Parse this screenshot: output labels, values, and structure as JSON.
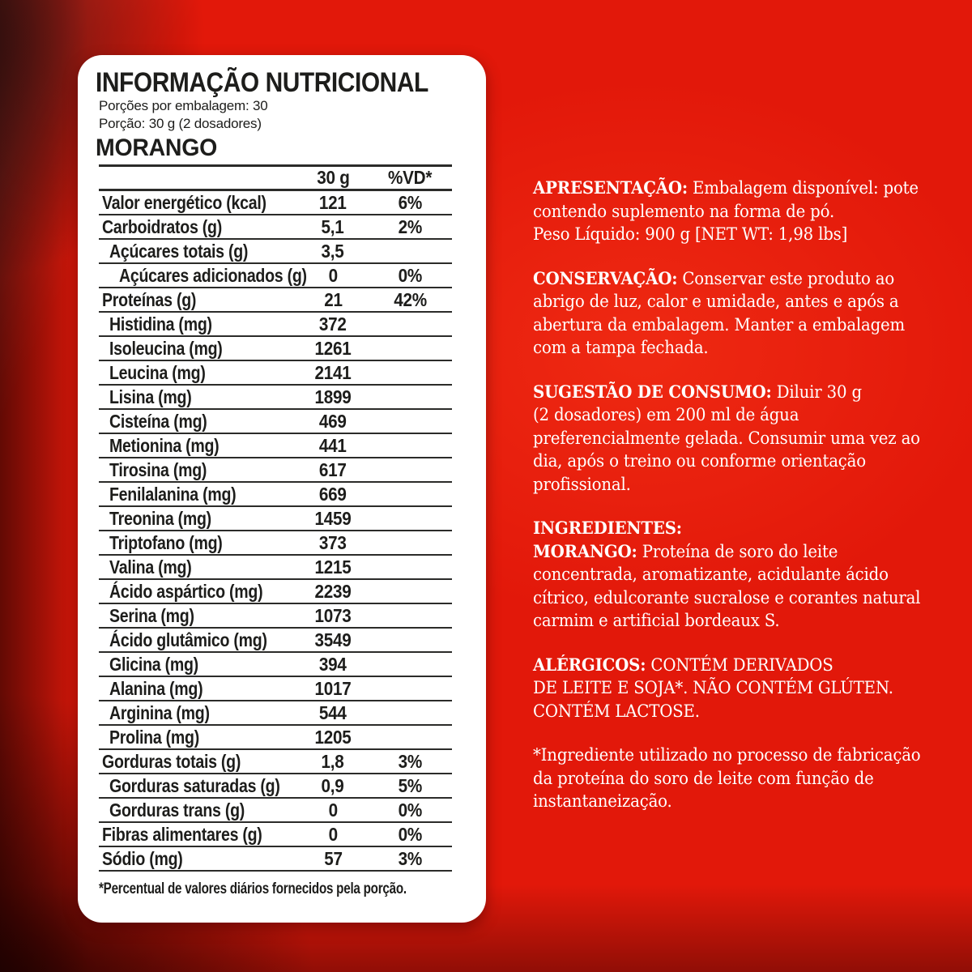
{
  "card": {
    "title": "INFORMAÇÃO NUTRICIONAL",
    "servings_per_package": "Porções por embalagem: 30",
    "serving_size": "Porção: 30 g (2 dosadores)",
    "flavor": "MORANGO",
    "table": {
      "columns": [
        "",
        "30 g",
        "%VD*"
      ],
      "rows": [
        {
          "name": "Valor energético (kcal)",
          "value": "121",
          "vd": "6%",
          "indent": 0
        },
        {
          "name": "Carboidratos (g)",
          "value": "5,1",
          "vd": "2%",
          "indent": 0
        },
        {
          "name": "Açúcares totais (g)",
          "value": "3,5",
          "vd": "",
          "indent": 1
        },
        {
          "name": "Açúcares adicionados (g)",
          "value": "0",
          "vd": "0%",
          "indent": 2
        },
        {
          "name": "Proteínas (g)",
          "value": "21",
          "vd": "42%",
          "indent": 0
        },
        {
          "name": "Histidina (mg)",
          "value": "372",
          "vd": "",
          "indent": 1
        },
        {
          "name": "Isoleucina (mg)",
          "value": "1261",
          "vd": "",
          "indent": 1
        },
        {
          "name": "Leucina (mg)",
          "value": "2141",
          "vd": "",
          "indent": 1
        },
        {
          "name": "Lisina (mg)",
          "value": "1899",
          "vd": "",
          "indent": 1
        },
        {
          "name": "Cisteína (mg)",
          "value": "469",
          "vd": "",
          "indent": 1
        },
        {
          "name": "Metionina (mg)",
          "value": "441",
          "vd": "",
          "indent": 1
        },
        {
          "name": "Tirosina (mg)",
          "value": "617",
          "vd": "",
          "indent": 1
        },
        {
          "name": "Fenilalanina (mg)",
          "value": "669",
          "vd": "",
          "indent": 1
        },
        {
          "name": "Treonina (mg)",
          "value": "1459",
          "vd": "",
          "indent": 1
        },
        {
          "name": "Triptofano (mg)",
          "value": "373",
          "vd": "",
          "indent": 1
        },
        {
          "name": "Valina (mg)",
          "value": "1215",
          "vd": "",
          "indent": 1
        },
        {
          "name": "Ácido aspártico (mg)",
          "value": "2239",
          "vd": "",
          "indent": 1
        },
        {
          "name": "Serina (mg)",
          "value": "1073",
          "vd": "",
          "indent": 1
        },
        {
          "name": "Ácido glutâmico (mg)",
          "value": "3549",
          "vd": "",
          "indent": 1
        },
        {
          "name": "Glicina (mg)",
          "value": "394",
          "vd": "",
          "indent": 1
        },
        {
          "name": "Alanina (mg)",
          "value": "1017",
          "vd": "",
          "indent": 1
        },
        {
          "name": "Arginina (mg)",
          "value": "544",
          "vd": "",
          "indent": 1
        },
        {
          "name": "Prolina (mg)",
          "value": "1205",
          "vd": "",
          "indent": 1
        },
        {
          "name": "Gorduras totais (g)",
          "value": "1,8",
          "vd": "3%",
          "indent": 0
        },
        {
          "name": "Gorduras saturadas (g)",
          "value": "0,9",
          "vd": "5%",
          "indent": 1
        },
        {
          "name": "Gorduras trans (g)",
          "value": "0",
          "vd": "0%",
          "indent": 1
        },
        {
          "name": "Fibras alimentares (g)",
          "value": "0",
          "vd": "0%",
          "indent": 0
        },
        {
          "name": "Sódio (mg)",
          "value": "57",
          "vd": "3%",
          "indent": 0
        }
      ]
    },
    "footnote": "*Percentual de valores diários fornecidos pela porção."
  },
  "info_panel": {
    "paragraphs": [
      {
        "label": "APRESENTAÇÃO",
        "text": "Embalagem disponível: pote\ncontendo suplemento na forma de pó.\nPeso Líquido: 900 g [NET WT: 1,98 lbs]",
        "tight": false
      },
      {
        "label": "CONSERVAÇÃO",
        "text": "Conservar este produto ao\nabrigo de luz, calor e umidade, antes e após a\nabertura da embalagem. Manter a embalagem\ncom a tampa fechada.",
        "tight": false
      },
      {
        "label": "SUGESTÃO DE CONSUMO",
        "text": "Diluir 30 g\n(2 dosadores) em 200 ml de água\npreferencialmente gelada. Consumir uma vez ao\ndia, após o treino ou conforme orientação\nprofissional.",
        "tight": false
      },
      {
        "label": "INGREDIENTES",
        "text": "",
        "tight": true
      },
      {
        "label": "MORANGO",
        "text": "Proteína de soro do leite\nconcentrada, aromatizante, acidulante ácido\ncítrico, edulcorante sucralose e corantes natural\ncarmim e artificial bordeaux S.",
        "tight": false
      },
      {
        "label": "ALÉRGICOS",
        "text": "CONTÉM DERIVADOS\nDE LEITE E SOJA*. NÃO CONTÉM GLÚTEN.\nCONTÉM LACTOSE.",
        "tight": false
      },
      {
        "label": "",
        "text": "*Ingrediente utilizado no processo de fabricação\nda proteína do soro de leite com função de\ninstantaneização.",
        "tight": false
      }
    ]
  },
  "colors": {
    "background_red": "#e2180a",
    "card_white": "#ffffff",
    "text_black": "#1d1d1b",
    "text_white": "#ffffff",
    "rule_line": "#2b2b29"
  }
}
